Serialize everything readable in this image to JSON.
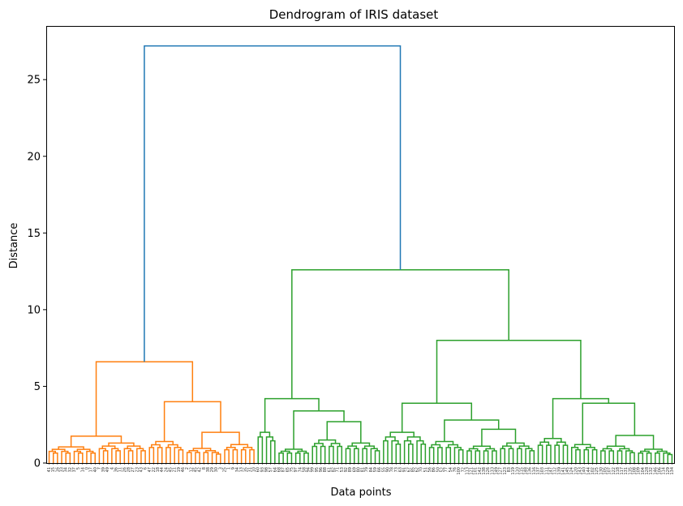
{
  "chart_data": {
    "type": "dendrogram",
    "title": "Dendrogram of IRIS dataset",
    "xlabel": "Data points",
    "ylabel": "Distance",
    "ylim": [
      0,
      28.5
    ],
    "yticks": [
      0,
      5,
      10,
      15,
      20,
      25
    ],
    "grid": false,
    "colors": {
      "cluster_1": "#ff7f0e",
      "cluster_2": "#2ca02c",
      "above_threshold": "#1f77b4",
      "frame": "#000000"
    },
    "n_leaves": 150,
    "leaf_labels": [
      "41",
      "15",
      "16",
      "33",
      "34",
      "32",
      "37",
      "5",
      "14",
      "0",
      "17",
      "40",
      "7",
      "39",
      "49",
      "4",
      "36",
      "11",
      "26",
      "28",
      "27",
      "23",
      "43",
      "6",
      "47",
      "22",
      "18",
      "44",
      "24",
      "45",
      "21",
      "19",
      "46",
      "2",
      "12",
      "45",
      "42",
      "8",
      "38",
      "29",
      "30",
      "3",
      "25",
      "1",
      "9",
      "34",
      "13",
      "35",
      "31",
      "10",
      "60",
      "93",
      "98",
      "57",
      "64",
      "68",
      "87",
      "65",
      "75",
      "97",
      "74",
      "58",
      "94",
      "99",
      "95",
      "96",
      "88",
      "61",
      "82",
      "71",
      "53",
      "92",
      "89",
      "69",
      "80",
      "81",
      "79",
      "84",
      "59",
      "66",
      "55",
      "90",
      "78",
      "73",
      "63",
      "91",
      "67",
      "85",
      "62",
      "70",
      "51",
      "56",
      "86",
      "50",
      "52",
      "77",
      "54",
      "76",
      "100",
      "72",
      "113",
      "121",
      "101",
      "142",
      "138",
      "126",
      "133",
      "149",
      "127",
      "123",
      "83",
      "119",
      "110",
      "115",
      "148",
      "136",
      "116",
      "137",
      "103",
      "111",
      "147",
      "112",
      "139",
      "141",
      "145",
      "124",
      "120",
      "143",
      "140",
      "144",
      "102",
      "125",
      "130",
      "105",
      "107",
      "122",
      "118",
      "117",
      "131",
      "135",
      "108",
      "109",
      "104",
      "128",
      "132",
      "146",
      "106",
      "114",
      "129",
      "134"
    ],
    "merges": [
      {
        "name": "root",
        "height": 27.2,
        "children": [
          "orange_cluster",
          "green_cluster"
        ]
      },
      {
        "name": "orange_cluster",
        "height": 6.6
      },
      {
        "name": "orange_left",
        "height": 1.75
      },
      {
        "name": "orange_right",
        "height": 4.0
      },
      {
        "name": "orange_right_a",
        "height": 1.4
      },
      {
        "name": "orange_right_b",
        "height": 2.0
      },
      {
        "name": "green_cluster",
        "height": 12.6
      },
      {
        "name": "green_left",
        "height": 4.2
      },
      {
        "name": "green_left_b",
        "height": 3.4
      },
      {
        "name": "green_left_c",
        "height": 2.7
      },
      {
        "name": "green_right",
        "height": 8.0
      },
      {
        "name": "green_right_a",
        "height": 3.9
      },
      {
        "name": "green_right_a2",
        "height": 2.8
      },
      {
        "name": "green_right_a3",
        "height": 2.2
      },
      {
        "name": "green_right_b",
        "height": 4.2
      },
      {
        "name": "green_right_b2",
        "height": 3.9
      },
      {
        "name": "green_right_b3",
        "height": 1.8
      }
    ]
  }
}
